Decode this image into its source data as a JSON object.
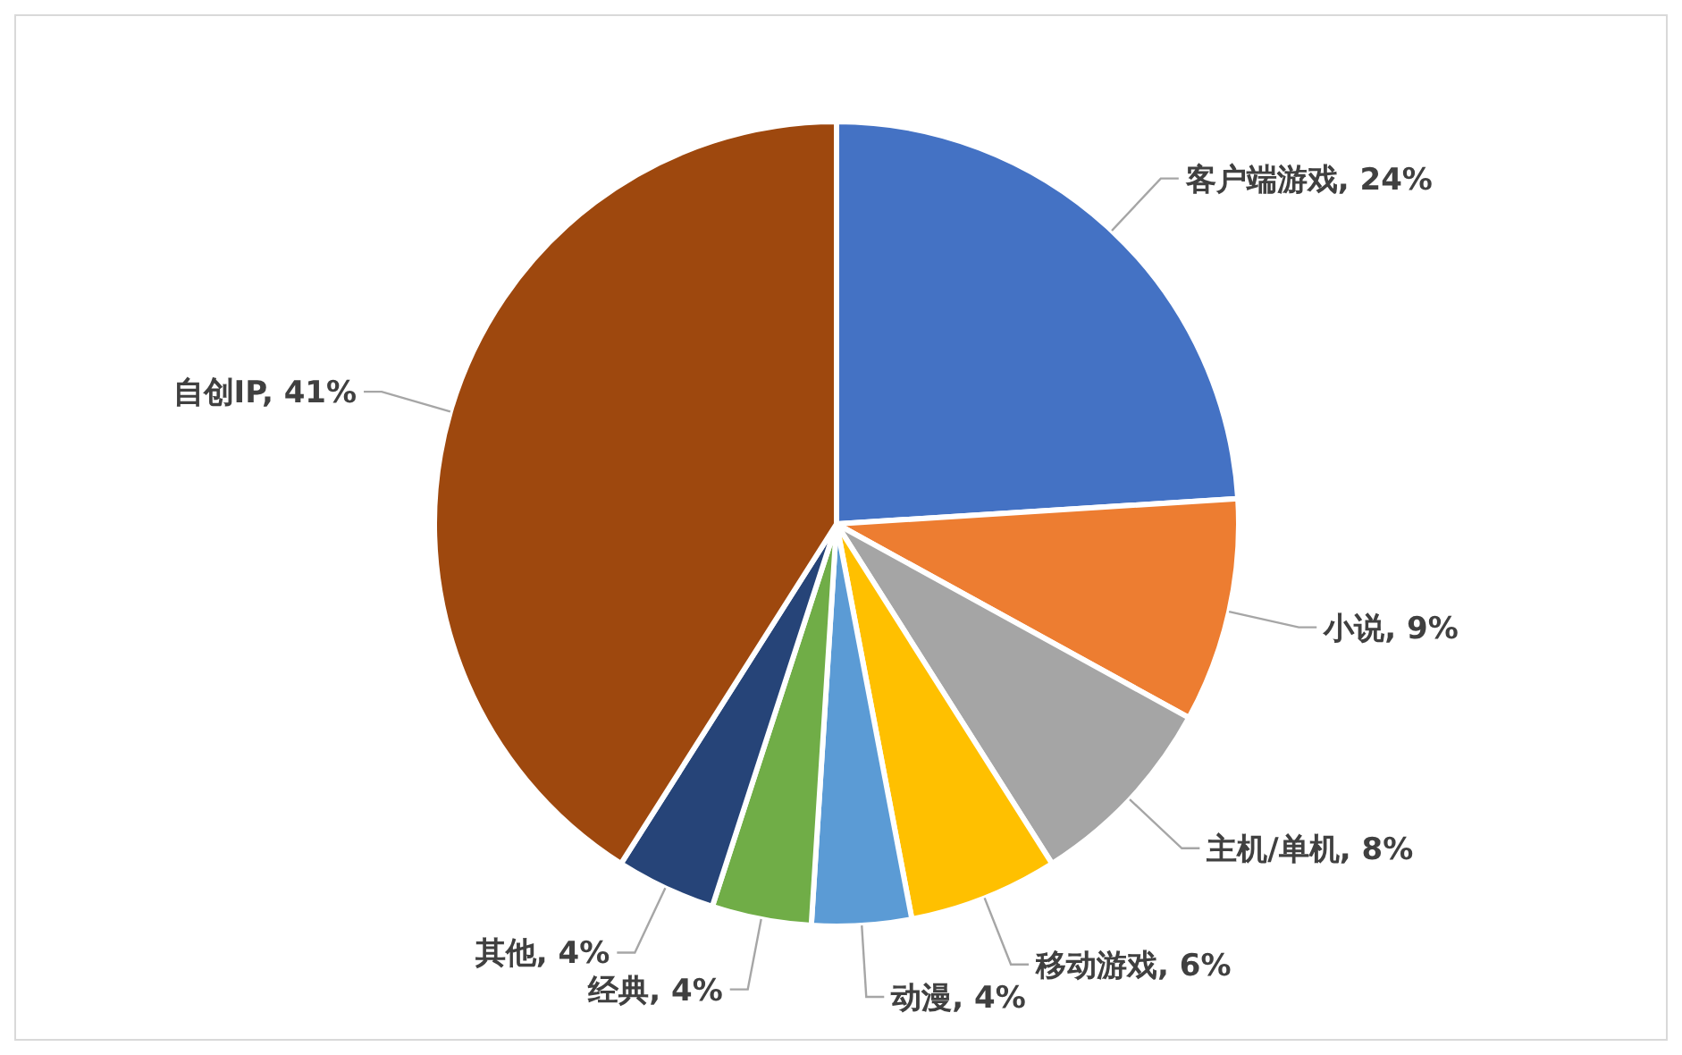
{
  "chart_data": {
    "type": "pie",
    "categories": [
      "客户端游戏",
      "小说",
      "主机/单机",
      "移动游戏",
      "动漫",
      "经典",
      "其他",
      "自创IP"
    ],
    "values": [
      24,
      9,
      8,
      6,
      4,
      4,
      4,
      41
    ],
    "colors": [
      "#4472c4",
      "#ed7d31",
      "#a5a5a5",
      "#ffc000",
      "#5b9bd5",
      "#70ad47",
      "#264478",
      "#9e480e"
    ],
    "value_labels": [
      "24%",
      "9%",
      "8%",
      "6%",
      "4%",
      "4%",
      "4%",
      "41%"
    ]
  }
}
